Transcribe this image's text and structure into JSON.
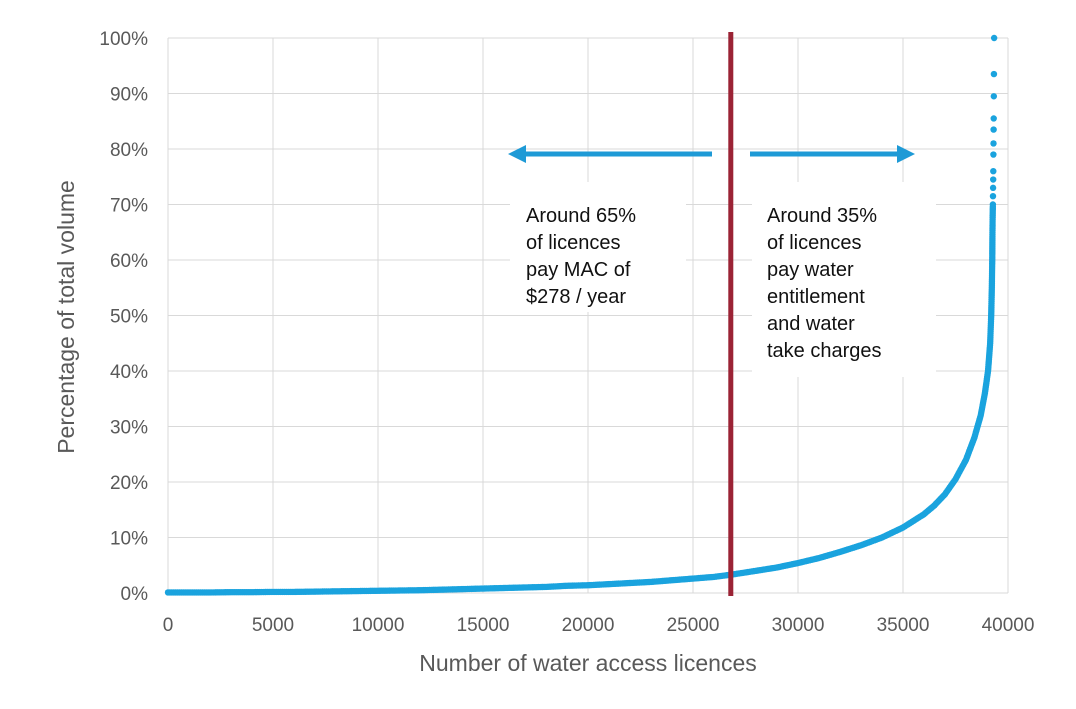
{
  "chart_data": {
    "type": "scatter",
    "title": "",
    "xlabel": "Number of water access licences",
    "ylabel": "Percentage of total volume",
    "xlim": [
      0,
      40000
    ],
    "ylim": [
      0,
      100
    ],
    "x_ticks": [
      "0",
      "5000",
      "10000",
      "15000",
      "20000",
      "25000",
      "30000",
      "35000",
      "40000"
    ],
    "y_ticks": [
      "0%",
      "10%",
      "20%",
      "30%",
      "40%",
      "50%",
      "60%",
      "70%",
      "80%",
      "90%",
      "100%"
    ],
    "grid": true,
    "series_color": "#1AA3DE",
    "divider": {
      "x": 26800,
      "color": "#9B2335"
    },
    "arrow_color": "#1E9AD6",
    "annotations": {
      "left": [
        "Around 65%",
        "of licences",
        "pay MAC  of",
        "$278 / year"
      ],
      "right": [
        "Around 35%",
        "of licences",
        "pay water",
        "entitlement",
        "and water",
        "take charges"
      ]
    },
    "series": [
      {
        "points": [
          [
            0,
            0.1
          ],
          [
            1000,
            0.1
          ],
          [
            2000,
            0.1
          ],
          [
            3000,
            0.15
          ],
          [
            4000,
            0.15
          ],
          [
            5000,
            0.2
          ],
          [
            6000,
            0.2
          ],
          [
            7000,
            0.25
          ],
          [
            8000,
            0.3
          ],
          [
            9000,
            0.35
          ],
          [
            10000,
            0.4
          ],
          [
            11000,
            0.45
          ],
          [
            12000,
            0.5
          ],
          [
            13000,
            0.6
          ],
          [
            14000,
            0.7
          ],
          [
            15000,
            0.8
          ],
          [
            16000,
            0.9
          ],
          [
            17000,
            1.0
          ],
          [
            18000,
            1.1
          ],
          [
            19000,
            1.3
          ],
          [
            20000,
            1.4
          ],
          [
            21000,
            1.6
          ],
          [
            22000,
            1.8
          ],
          [
            23000,
            2.0
          ],
          [
            24000,
            2.3
          ],
          [
            25000,
            2.6
          ],
          [
            26000,
            2.9
          ],
          [
            26800,
            3.3
          ],
          [
            27500,
            3.7
          ],
          [
            28000,
            4.0
          ],
          [
            29000,
            4.6
          ],
          [
            30000,
            5.4
          ],
          [
            31000,
            6.3
          ],
          [
            32000,
            7.4
          ],
          [
            33000,
            8.6
          ],
          [
            34000,
            10.0
          ],
          [
            35000,
            11.8
          ],
          [
            35500,
            13.0
          ],
          [
            36000,
            14.2
          ],
          [
            36500,
            15.8
          ],
          [
            37000,
            17.8
          ],
          [
            37500,
            20.5
          ],
          [
            38000,
            24.0
          ],
          [
            38400,
            28.0
          ],
          [
            38700,
            32.0
          ],
          [
            38900,
            36.0
          ],
          [
            39050,
            40.0
          ],
          [
            39150,
            45.0
          ],
          [
            39200,
            50.0
          ],
          [
            39230,
            55.0
          ],
          [
            39250,
            60.0
          ],
          [
            39260,
            65.0
          ],
          [
            39270,
            68.0
          ],
          [
            39280,
            70.0
          ],
          [
            39285,
            71.5
          ],
          [
            39290,
            73.0
          ],
          [
            39295,
            74.5
          ],
          [
            39300,
            76.0
          ],
          [
            39305,
            79.0
          ],
          [
            39310,
            81.0
          ],
          [
            39315,
            83.5
          ],
          [
            39320,
            85.5
          ],
          [
            39325,
            89.5
          ],
          [
            39330,
            93.5
          ],
          [
            39340,
            100.0
          ]
        ]
      }
    ]
  }
}
